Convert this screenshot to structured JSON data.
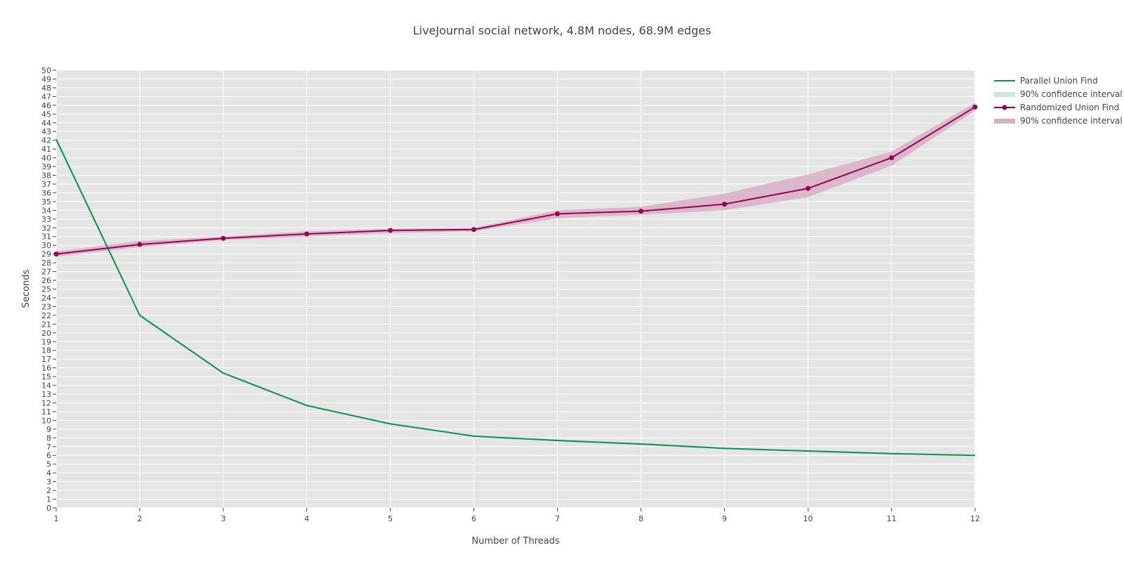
{
  "chart_data": {
    "type": "line",
    "title": "LiveJournal social network, 4.8M nodes, 68.9M edges",
    "xlabel": "Number of Threads",
    "ylabel": "Seconds",
    "x": [
      1,
      2,
      3,
      4,
      5,
      6,
      7,
      8,
      9,
      10,
      11,
      12
    ],
    "xlim": [
      1,
      12
    ],
    "ylim": [
      0,
      50
    ],
    "x_ticks": [
      "1",
      "2",
      "3",
      "4",
      "5",
      "6",
      "7",
      "8",
      "9",
      "10",
      "11",
      "12"
    ],
    "y_ticks": [
      "0",
      "1",
      "2",
      "3",
      "4",
      "5",
      "6",
      "7",
      "8",
      "9",
      "10",
      "11",
      "12",
      "13",
      "14",
      "15",
      "16",
      "17",
      "18",
      "19",
      "20",
      "21",
      "22",
      "23",
      "24",
      "25",
      "26",
      "27",
      "28",
      "29",
      "30",
      "31",
      "32",
      "33",
      "34",
      "35",
      "36",
      "37",
      "38",
      "39",
      "40",
      "41",
      "42",
      "43",
      "44",
      "45",
      "46",
      "47",
      "48",
      "49",
      "50"
    ],
    "grid": true,
    "legend_position": "top-right",
    "series": [
      {
        "name": "Parallel Union Find",
        "ci_name": "90% confidence interval",
        "color": "#0b9150",
        "ci_color": "#cde7d8",
        "markers": false,
        "values": [
          42.1,
          22.0,
          15.4,
          11.7,
          9.6,
          8.2,
          7.7,
          7.3,
          6.8,
          6.5,
          6.2,
          6.0
        ],
        "ci_low": [
          41.7,
          21.8,
          15.3,
          11.6,
          9.5,
          8.1,
          7.6,
          7.2,
          6.7,
          6.4,
          6.1,
          5.9
        ],
        "ci_high": [
          42.5,
          22.3,
          15.5,
          11.8,
          9.7,
          8.3,
          7.8,
          7.4,
          6.9,
          6.6,
          6.3,
          6.1
        ]
      },
      {
        "name": "Randomized Union Find",
        "ci_name": "90% confidence interval",
        "color": "#960055",
        "ci_color": "#d9afc6",
        "markers": true,
        "values": [
          29.0,
          30.1,
          30.8,
          31.3,
          31.7,
          31.8,
          33.6,
          33.9,
          34.7,
          36.5,
          40.0,
          45.8
        ],
        "ci_low": [
          28.7,
          29.8,
          30.6,
          31.0,
          31.4,
          31.6,
          33.1,
          33.5,
          34.0,
          35.5,
          39.1,
          45.4
        ],
        "ci_high": [
          29.3,
          30.5,
          31.0,
          31.6,
          31.9,
          32.0,
          34.0,
          34.4,
          35.9,
          38.1,
          40.7,
          46.3
        ]
      }
    ]
  }
}
